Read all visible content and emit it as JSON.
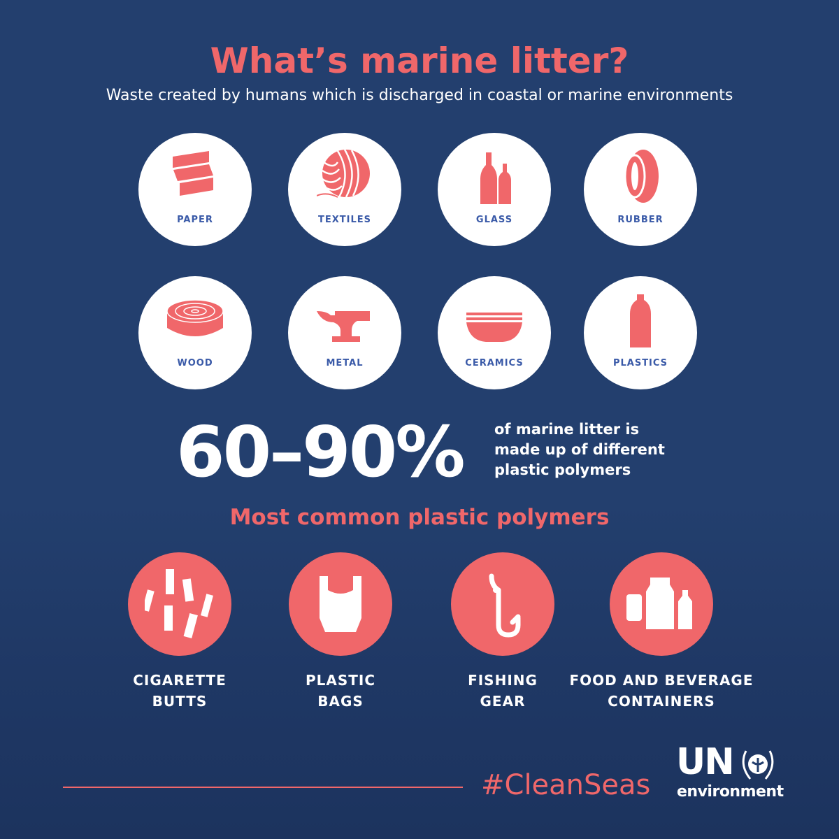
{
  "title": "What’s marine litter?",
  "subtitle": "Waste created by humans which is discharged in coastal or marine environments",
  "materials": [
    {
      "label": "PAPER",
      "icon": "folded-paper-icon"
    },
    {
      "label": "TEXTILES",
      "icon": "yarn-ball-icon"
    },
    {
      "label": "GLASS",
      "icon": "glass-bottles-icon"
    },
    {
      "label": "RUBBER",
      "icon": "tire-icon"
    },
    {
      "label": "WOOD",
      "icon": "log-slice-icon"
    },
    {
      "label": "METAL",
      "icon": "anvil-icon"
    },
    {
      "label": "CERAMICS",
      "icon": "bowl-icon"
    },
    {
      "label": "PLASTICS",
      "icon": "plastic-bottle-icon"
    }
  ],
  "stat": {
    "value": "60–90%",
    "text_lines": [
      "of marine litter is",
      "made up of different",
      "plastic polymers"
    ]
  },
  "polymers_heading": "Most common plastic polymers",
  "polymers": [
    {
      "lines": [
        "CIGARETTE",
        "BUTTS"
      ],
      "icon": "cigarette-butts-icon"
    },
    {
      "lines": [
        "PLASTIC",
        "BAGS"
      ],
      "icon": "plastic-bag-icon"
    },
    {
      "lines": [
        "FISHING",
        "GEAR"
      ],
      "icon": "fishing-hook-icon"
    },
    {
      "lines": [
        "FOOD AND BEVERAGE",
        "CONTAINERS"
      ],
      "icon": "containers-icon"
    }
  ],
  "footer": {
    "hashtag": "#CleanSeas",
    "logo_un": "UN",
    "logo_env": "environment"
  },
  "colors": {
    "background": "#233f6e",
    "accent": "#f0676a",
    "label": "#3a5aa8"
  }
}
